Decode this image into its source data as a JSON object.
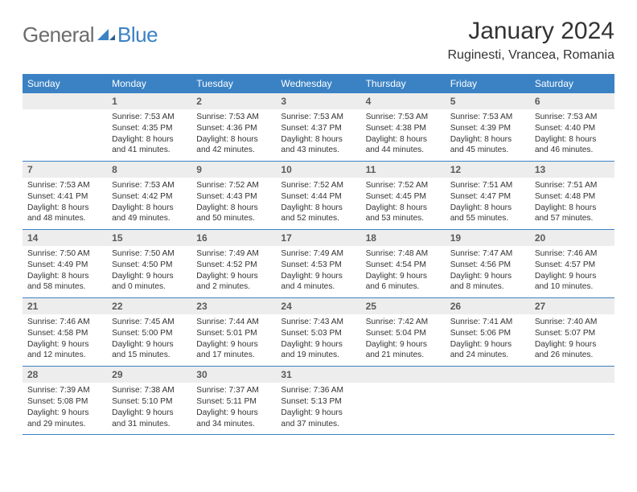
{
  "brand": {
    "general": "General",
    "blue": "Blue"
  },
  "title": "January 2024",
  "location": "Ruginesti, Vrancea, Romania",
  "theme": {
    "header_bg": "#3b82c4",
    "header_fg": "#ffffff",
    "daynum_bg": "#ededed",
    "daynum_fg": "#5a5a5a",
    "body_fg": "#333333",
    "rule_color": "#3b82c4",
    "page_bg": "#ffffff",
    "title_fontsize": 30,
    "location_fontsize": 16,
    "dayhead_fontsize": 12,
    "cell_fontsize": 10.2
  },
  "weekdays": [
    "Sunday",
    "Monday",
    "Tuesday",
    "Wednesday",
    "Thursday",
    "Friday",
    "Saturday"
  ],
  "weeks": [
    [
      {
        "n": "",
        "sr": "",
        "ss": "",
        "dl": ""
      },
      {
        "n": "1",
        "sr": "Sunrise: 7:53 AM",
        "ss": "Sunset: 4:35 PM",
        "dl": "Daylight: 8 hours and 41 minutes."
      },
      {
        "n": "2",
        "sr": "Sunrise: 7:53 AM",
        "ss": "Sunset: 4:36 PM",
        "dl": "Daylight: 8 hours and 42 minutes."
      },
      {
        "n": "3",
        "sr": "Sunrise: 7:53 AM",
        "ss": "Sunset: 4:37 PM",
        "dl": "Daylight: 8 hours and 43 minutes."
      },
      {
        "n": "4",
        "sr": "Sunrise: 7:53 AM",
        "ss": "Sunset: 4:38 PM",
        "dl": "Daylight: 8 hours and 44 minutes."
      },
      {
        "n": "5",
        "sr": "Sunrise: 7:53 AM",
        "ss": "Sunset: 4:39 PM",
        "dl": "Daylight: 8 hours and 45 minutes."
      },
      {
        "n": "6",
        "sr": "Sunrise: 7:53 AM",
        "ss": "Sunset: 4:40 PM",
        "dl": "Daylight: 8 hours and 46 minutes."
      }
    ],
    [
      {
        "n": "7",
        "sr": "Sunrise: 7:53 AM",
        "ss": "Sunset: 4:41 PM",
        "dl": "Daylight: 8 hours and 48 minutes."
      },
      {
        "n": "8",
        "sr": "Sunrise: 7:53 AM",
        "ss": "Sunset: 4:42 PM",
        "dl": "Daylight: 8 hours and 49 minutes."
      },
      {
        "n": "9",
        "sr": "Sunrise: 7:52 AM",
        "ss": "Sunset: 4:43 PM",
        "dl": "Daylight: 8 hours and 50 minutes."
      },
      {
        "n": "10",
        "sr": "Sunrise: 7:52 AM",
        "ss": "Sunset: 4:44 PM",
        "dl": "Daylight: 8 hours and 52 minutes."
      },
      {
        "n": "11",
        "sr": "Sunrise: 7:52 AM",
        "ss": "Sunset: 4:45 PM",
        "dl": "Daylight: 8 hours and 53 minutes."
      },
      {
        "n": "12",
        "sr": "Sunrise: 7:51 AM",
        "ss": "Sunset: 4:47 PM",
        "dl": "Daylight: 8 hours and 55 minutes."
      },
      {
        "n": "13",
        "sr": "Sunrise: 7:51 AM",
        "ss": "Sunset: 4:48 PM",
        "dl": "Daylight: 8 hours and 57 minutes."
      }
    ],
    [
      {
        "n": "14",
        "sr": "Sunrise: 7:50 AM",
        "ss": "Sunset: 4:49 PM",
        "dl": "Daylight: 8 hours and 58 minutes."
      },
      {
        "n": "15",
        "sr": "Sunrise: 7:50 AM",
        "ss": "Sunset: 4:50 PM",
        "dl": "Daylight: 9 hours and 0 minutes."
      },
      {
        "n": "16",
        "sr": "Sunrise: 7:49 AM",
        "ss": "Sunset: 4:52 PM",
        "dl": "Daylight: 9 hours and 2 minutes."
      },
      {
        "n": "17",
        "sr": "Sunrise: 7:49 AM",
        "ss": "Sunset: 4:53 PM",
        "dl": "Daylight: 9 hours and 4 minutes."
      },
      {
        "n": "18",
        "sr": "Sunrise: 7:48 AM",
        "ss": "Sunset: 4:54 PM",
        "dl": "Daylight: 9 hours and 6 minutes."
      },
      {
        "n": "19",
        "sr": "Sunrise: 7:47 AM",
        "ss": "Sunset: 4:56 PM",
        "dl": "Daylight: 9 hours and 8 minutes."
      },
      {
        "n": "20",
        "sr": "Sunrise: 7:46 AM",
        "ss": "Sunset: 4:57 PM",
        "dl": "Daylight: 9 hours and 10 minutes."
      }
    ],
    [
      {
        "n": "21",
        "sr": "Sunrise: 7:46 AM",
        "ss": "Sunset: 4:58 PM",
        "dl": "Daylight: 9 hours and 12 minutes."
      },
      {
        "n": "22",
        "sr": "Sunrise: 7:45 AM",
        "ss": "Sunset: 5:00 PM",
        "dl": "Daylight: 9 hours and 15 minutes."
      },
      {
        "n": "23",
        "sr": "Sunrise: 7:44 AM",
        "ss": "Sunset: 5:01 PM",
        "dl": "Daylight: 9 hours and 17 minutes."
      },
      {
        "n": "24",
        "sr": "Sunrise: 7:43 AM",
        "ss": "Sunset: 5:03 PM",
        "dl": "Daylight: 9 hours and 19 minutes."
      },
      {
        "n": "25",
        "sr": "Sunrise: 7:42 AM",
        "ss": "Sunset: 5:04 PM",
        "dl": "Daylight: 9 hours and 21 minutes."
      },
      {
        "n": "26",
        "sr": "Sunrise: 7:41 AM",
        "ss": "Sunset: 5:06 PM",
        "dl": "Daylight: 9 hours and 24 minutes."
      },
      {
        "n": "27",
        "sr": "Sunrise: 7:40 AM",
        "ss": "Sunset: 5:07 PM",
        "dl": "Daylight: 9 hours and 26 minutes."
      }
    ],
    [
      {
        "n": "28",
        "sr": "Sunrise: 7:39 AM",
        "ss": "Sunset: 5:08 PM",
        "dl": "Daylight: 9 hours and 29 minutes."
      },
      {
        "n": "29",
        "sr": "Sunrise: 7:38 AM",
        "ss": "Sunset: 5:10 PM",
        "dl": "Daylight: 9 hours and 31 minutes."
      },
      {
        "n": "30",
        "sr": "Sunrise: 7:37 AM",
        "ss": "Sunset: 5:11 PM",
        "dl": "Daylight: 9 hours and 34 minutes."
      },
      {
        "n": "31",
        "sr": "Sunrise: 7:36 AM",
        "ss": "Sunset: 5:13 PM",
        "dl": "Daylight: 9 hours and 37 minutes."
      },
      {
        "n": "",
        "sr": "",
        "ss": "",
        "dl": ""
      },
      {
        "n": "",
        "sr": "",
        "ss": "",
        "dl": ""
      },
      {
        "n": "",
        "sr": "",
        "ss": "",
        "dl": ""
      }
    ]
  ]
}
